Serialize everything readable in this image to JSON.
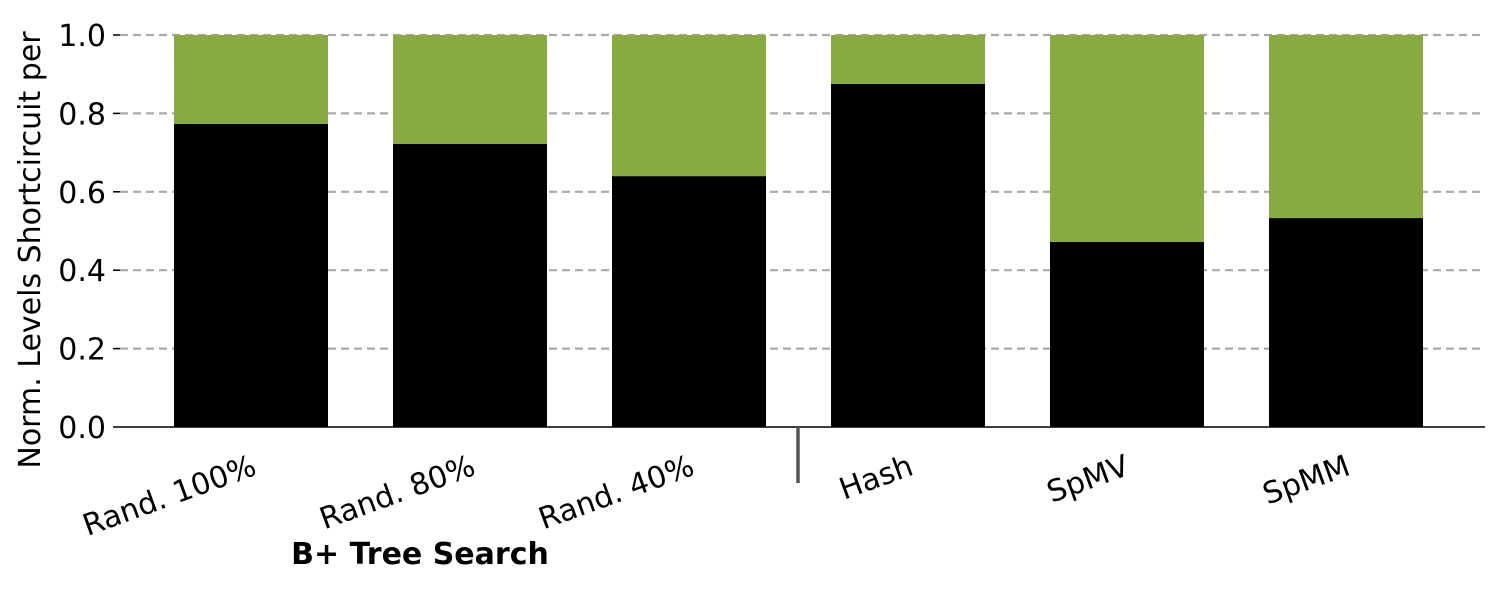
{
  "chart_data": {
    "type": "bar",
    "stacked": true,
    "categories": [
      "Rand. 100%",
      "Rand. 80%",
      "Rand. 40%",
      "Hash",
      "SpMV",
      "SpMM"
    ],
    "series": [
      {
        "values": [
          0.773,
          0.722,
          0.64,
          0.875,
          0.472,
          0.533
        ]
      },
      {
        "values": [
          0.227,
          0.278,
          0.36,
          0.125,
          0.528,
          0.467
        ]
      }
    ],
    "ylabel": "Norm. Levels Shortcircuit per",
    "xlabel": "",
    "ylim": [
      0,
      1.0
    ],
    "yticks": [
      "0.0",
      "0.2",
      "0.4",
      "0.6",
      "0.8",
      "1.0"
    ],
    "grid": "horizontal-dashed",
    "group_label": "B+ Tree Search",
    "colors": {
      "bottom": "#000000",
      "top": "#88ab41",
      "grid": "#aaaaaa",
      "separator": "#555555"
    }
  }
}
